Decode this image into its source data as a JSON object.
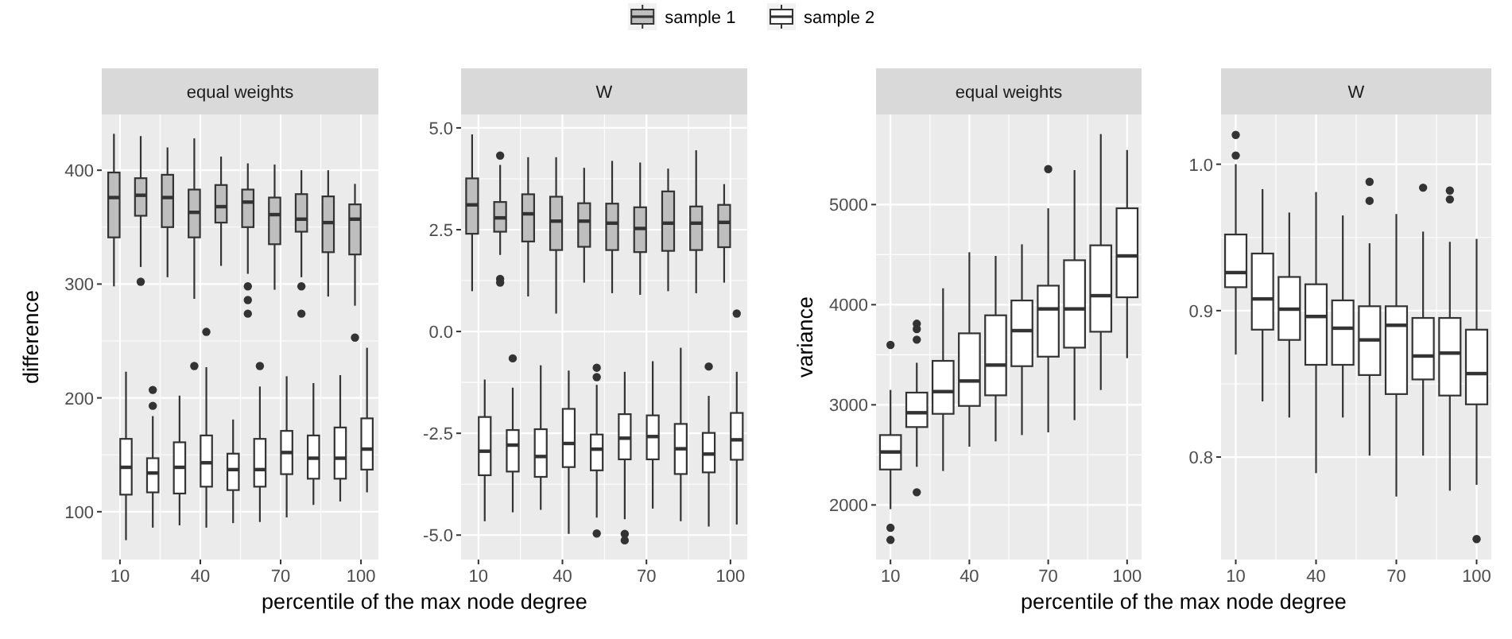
{
  "chart_data": [
    {
      "type": "box",
      "title": "equal weights",
      "ylabel": "difference",
      "xlabel": "percentile of the max node degree",
      "x": [
        10,
        20,
        30,
        40,
        50,
        60,
        70,
        80,
        90,
        100
      ],
      "xlim": [
        3.2,
        106.5
      ],
      "xticks": [
        10,
        40,
        70,
        100
      ],
      "ylim": [
        58,
        449
      ],
      "yticks": [
        100,
        200,
        300,
        400
      ],
      "grid": true,
      "legend": "top",
      "series": [
        {
          "name": "sample 1",
          "color": "#bebebe",
          "boxes": [
            {
              "low": 298,
              "q1": 341,
              "median": 376,
              "q3": 398,
              "high": 432
            },
            {
              "low": 315,
              "q1": 360,
              "median": 378,
              "q3": 393,
              "high": 430,
              "outliers": [
                302
              ]
            },
            {
              "low": 306,
              "q1": 350,
              "median": 376,
              "q3": 396,
              "high": 420
            },
            {
              "low": 287,
              "q1": 341,
              "median": 363,
              "q3": 383,
              "high": 428,
              "outliers": [
                228
              ]
            },
            {
              "low": 316,
              "q1": 354,
              "median": 368,
              "q3": 387,
              "high": 412
            },
            {
              "low": 309,
              "q1": 350,
              "median": 372,
              "q3": 383,
              "high": 406,
              "outliers": [
                298,
                286,
                274
              ]
            },
            {
              "low": 295,
              "q1": 335,
              "median": 361,
              "q3": 376,
              "high": 405
            },
            {
              "low": 306,
              "q1": 346,
              "median": 357,
              "q3": 379,
              "high": 400,
              "outliers": [
                298,
                274
              ]
            },
            {
              "low": 289,
              "q1": 328,
              "median": 354,
              "q3": 377,
              "high": 400
            },
            {
              "low": 281,
              "q1": 326,
              "median": 357,
              "q3": 370,
              "high": 388,
              "outliers": [
                253
              ]
            }
          ]
        },
        {
          "name": "sample 2",
          "color": "#ffffff",
          "boxes": [
            {
              "low": 75,
              "q1": 115,
              "median": 139,
              "q3": 164,
              "high": 223
            },
            {
              "low": 86,
              "q1": 117,
              "median": 134,
              "q3": 147,
              "high": 184,
              "outliers": [
                207,
                193
              ]
            },
            {
              "low": 88,
              "q1": 116,
              "median": 139,
              "q3": 161,
              "high": 202
            },
            {
              "low": 86,
              "q1": 122,
              "median": 143,
              "q3": 167,
              "high": 227,
              "outliers": [
                258
              ]
            },
            {
              "low": 90,
              "q1": 119,
              "median": 137,
              "q3": 151,
              "high": 181
            },
            {
              "low": 91,
              "q1": 122,
              "median": 137,
              "q3": 164,
              "high": 210,
              "outliers": [
                228
              ]
            },
            {
              "low": 95,
              "q1": 133,
              "median": 152,
              "q3": 171,
              "high": 219
            },
            {
              "low": 106,
              "q1": 129,
              "median": 147,
              "q3": 167,
              "high": 213
            },
            {
              "low": 109,
              "q1": 129,
              "median": 147,
              "q3": 174,
              "high": 220
            },
            {
              "low": 117,
              "q1": 137,
              "median": 155,
              "q3": 182,
              "high": 244
            }
          ]
        }
      ]
    },
    {
      "type": "box",
      "title": "W",
      "x": [
        10,
        20,
        30,
        40,
        50,
        60,
        70,
        80,
        90,
        100
      ],
      "xlim": [
        3.8,
        106
      ],
      "xticks": [
        10,
        40,
        70,
        100
      ],
      "ylim": [
        -5.6,
        5.33
      ],
      "yticks": [
        {
          "value": 5,
          "label": "5.0"
        },
        2.5,
        {
          "value": 0,
          "label": "0.0"
        },
        -2.5,
        {
          "value": -5,
          "label": "-5.0"
        }
      ],
      "grid": true,
      "series": [
        {
          "color": "#bebebe",
          "boxes": [
            {
              "low": 0.99,
              "q1": 2.4,
              "median": 3.11,
              "q3": 3.76,
              "high": 4.84
            },
            {
              "low": 1.88,
              "q1": 2.45,
              "median": 2.79,
              "q3": 3.18,
              "high": 4.09,
              "outliers": [
                4.32,
                1.29,
                1.2
              ]
            },
            {
              "low": 0.86,
              "q1": 2.21,
              "median": 2.89,
              "q3": 3.37,
              "high": 4.28
            },
            {
              "low": 0.44,
              "q1": 2.0,
              "median": 2.71,
              "q3": 3.31,
              "high": 4.28
            },
            {
              "low": 1.2,
              "q1": 2.08,
              "median": 2.71,
              "q3": 3.15,
              "high": 4.02
            },
            {
              "low": 0.94,
              "q1": 2.0,
              "median": 2.66,
              "q3": 3.14,
              "high": 4.19
            },
            {
              "low": 0.9,
              "q1": 1.95,
              "median": 2.53,
              "q3": 3.05,
              "high": 4.15
            },
            {
              "low": 0.99,
              "q1": 1.98,
              "median": 2.66,
              "q3": 3.44,
              "high": 4.0
            },
            {
              "low": 0.94,
              "q1": 2.0,
              "median": 2.66,
              "q3": 3.07,
              "high": 4.45
            },
            {
              "low": 1.2,
              "q1": 2.07,
              "median": 2.68,
              "q3": 3.11,
              "high": 3.62
            }
          ]
        },
        {
          "color": "#ffffff",
          "boxes": [
            {
              "low": -4.66,
              "q1": -3.53,
              "median": -2.94,
              "q3": -2.1,
              "high": -1.18
            },
            {
              "low": -4.44,
              "q1": -3.44,
              "median": -2.79,
              "q3": -2.42,
              "high": -1.38,
              "outliers": [
                -0.66
              ]
            },
            {
              "low": -4.38,
              "q1": -3.57,
              "median": -3.07,
              "q3": -2.4,
              "high": -0.83
            },
            {
              "low": -4.97,
              "q1": -3.33,
              "median": -2.75,
              "q3": -1.9,
              "high": -0.96
            },
            {
              "low": -4.57,
              "q1": -3.41,
              "median": -2.89,
              "q3": -2.53,
              "high": -1.31,
              "outliers": [
                -0.89,
                -1.12,
                -4.96
              ]
            },
            {
              "low": -4.61,
              "q1": -3.14,
              "median": -2.62,
              "q3": -2.03,
              "high": -0.99,
              "outliers": [
                -4.97,
                -5.13
              ]
            },
            {
              "low": -4.35,
              "q1": -3.14,
              "median": -2.58,
              "q3": -2.06,
              "high": -0.73
            },
            {
              "low": -4.66,
              "q1": -3.5,
              "median": -2.88,
              "q3": -2.27,
              "high": -0.4
            },
            {
              "low": -4.79,
              "q1": -3.46,
              "median": -3.01,
              "q3": -2.49,
              "high": -1.58,
              "outliers": [
                -0.86
              ]
            },
            {
              "low": -4.74,
              "q1": -3.15,
              "median": -2.66,
              "q3": -2.0,
              "high": -0.99,
              "outliers": [
                0.44
              ]
            }
          ]
        }
      ]
    },
    {
      "type": "box",
      "title": "equal weights",
      "ylabel": "variance",
      "xlabel": "percentile of the max node degree",
      "x": [
        10,
        20,
        30,
        40,
        50,
        60,
        70,
        80,
        90,
        100
      ],
      "xlim": [
        4.5,
        105.5
      ],
      "xticks": [
        10,
        40,
        70,
        100
      ],
      "ylim": [
        1455,
        5900
      ],
      "yticks": [
        2000,
        3000,
        4000,
        5000
      ],
      "grid": true,
      "series": [
        {
          "color": "#ffffff",
          "boxes": [
            {
              "low": 1958,
              "q1": 2354,
              "median": 2529,
              "q3": 2698,
              "high": 3148,
              "outliers": [
                3598,
                1772,
                1651
              ]
            },
            {
              "low": 2381,
              "q1": 2778,
              "median": 2921,
              "q3": 3122,
              "high": 3420,
              "outliers": [
                3810,
                3757,
                3651,
                2127
              ]
            },
            {
              "low": 2339,
              "q1": 2910,
              "median": 3132,
              "q3": 3439,
              "high": 4164
            },
            {
              "low": 2582,
              "q1": 2989,
              "median": 3238,
              "q3": 3714,
              "high": 4524
            },
            {
              "low": 2635,
              "q1": 3095,
              "median": 3397,
              "q3": 3894,
              "high": 4487
            },
            {
              "low": 2698,
              "q1": 3386,
              "median": 3741,
              "q3": 4042,
              "high": 4603
            },
            {
              "low": 2725,
              "q1": 3481,
              "median": 3958,
              "q3": 4190,
              "high": 4963,
              "outliers": [
                5354
              ]
            },
            {
              "low": 2847,
              "q1": 3571,
              "median": 3958,
              "q3": 4444,
              "high": 5344
            },
            {
              "low": 3148,
              "q1": 3730,
              "median": 4090,
              "q3": 4593,
              "high": 5704
            },
            {
              "low": 3466,
              "q1": 4074,
              "median": 4487,
              "q3": 4963,
              "high": 5545
            }
          ]
        }
      ]
    },
    {
      "type": "box",
      "title": "W",
      "x": [
        10,
        20,
        30,
        40,
        50,
        60,
        70,
        80,
        90,
        100
      ],
      "xlim": [
        4.5,
        105.5
      ],
      "xticks": [
        10,
        40,
        70,
        100
      ],
      "ylim": [
        0.73,
        1.034
      ],
      "yticks": [
        0.8,
        0.9,
        {
          "value": 1,
          "label": "1.0"
        }
      ],
      "grid": true,
      "series": [
        {
          "color": "#ffffff",
          "boxes": [
            {
              "low": 0.87,
              "q1": 0.916,
              "median": 0.926,
              "q3": 0.952,
              "high": 1.0,
              "outliers": [
                1.02,
                1.006
              ]
            },
            {
              "low": 0.838,
              "q1": 0.887,
              "median": 0.908,
              "q3": 0.939,
              "high": 0.983
            },
            {
              "low": 0.827,
              "q1": 0.88,
              "median": 0.901,
              "q3": 0.923,
              "high": 0.967
            },
            {
              "low": 0.789,
              "q1": 0.863,
              "median": 0.896,
              "q3": 0.918,
              "high": 0.981
            },
            {
              "low": 0.827,
              "q1": 0.863,
              "median": 0.888,
              "q3": 0.907,
              "high": 0.965
            },
            {
              "low": 0.801,
              "q1": 0.856,
              "median": 0.88,
              "q3": 0.903,
              "high": 0.946,
              "outliers": [
                0.988,
                0.975
              ]
            },
            {
              "low": 0.773,
              "q1": 0.843,
              "median": 0.89,
              "q3": 0.903,
              "high": 0.966
            },
            {
              "low": 0.801,
              "q1": 0.853,
              "median": 0.869,
              "q3": 0.895,
              "high": 0.954,
              "outliers": [
                0.984
              ]
            },
            {
              "low": 0.777,
              "q1": 0.842,
              "median": 0.871,
              "q3": 0.895,
              "high": 0.947,
              "outliers": [
                0.982,
                0.976
              ]
            },
            {
              "low": 0.781,
              "q1": 0.836,
              "median": 0.857,
              "q3": 0.887,
              "high": 0.949,
              "outliers": [
                0.744
              ]
            }
          ]
        }
      ]
    }
  ]
}
